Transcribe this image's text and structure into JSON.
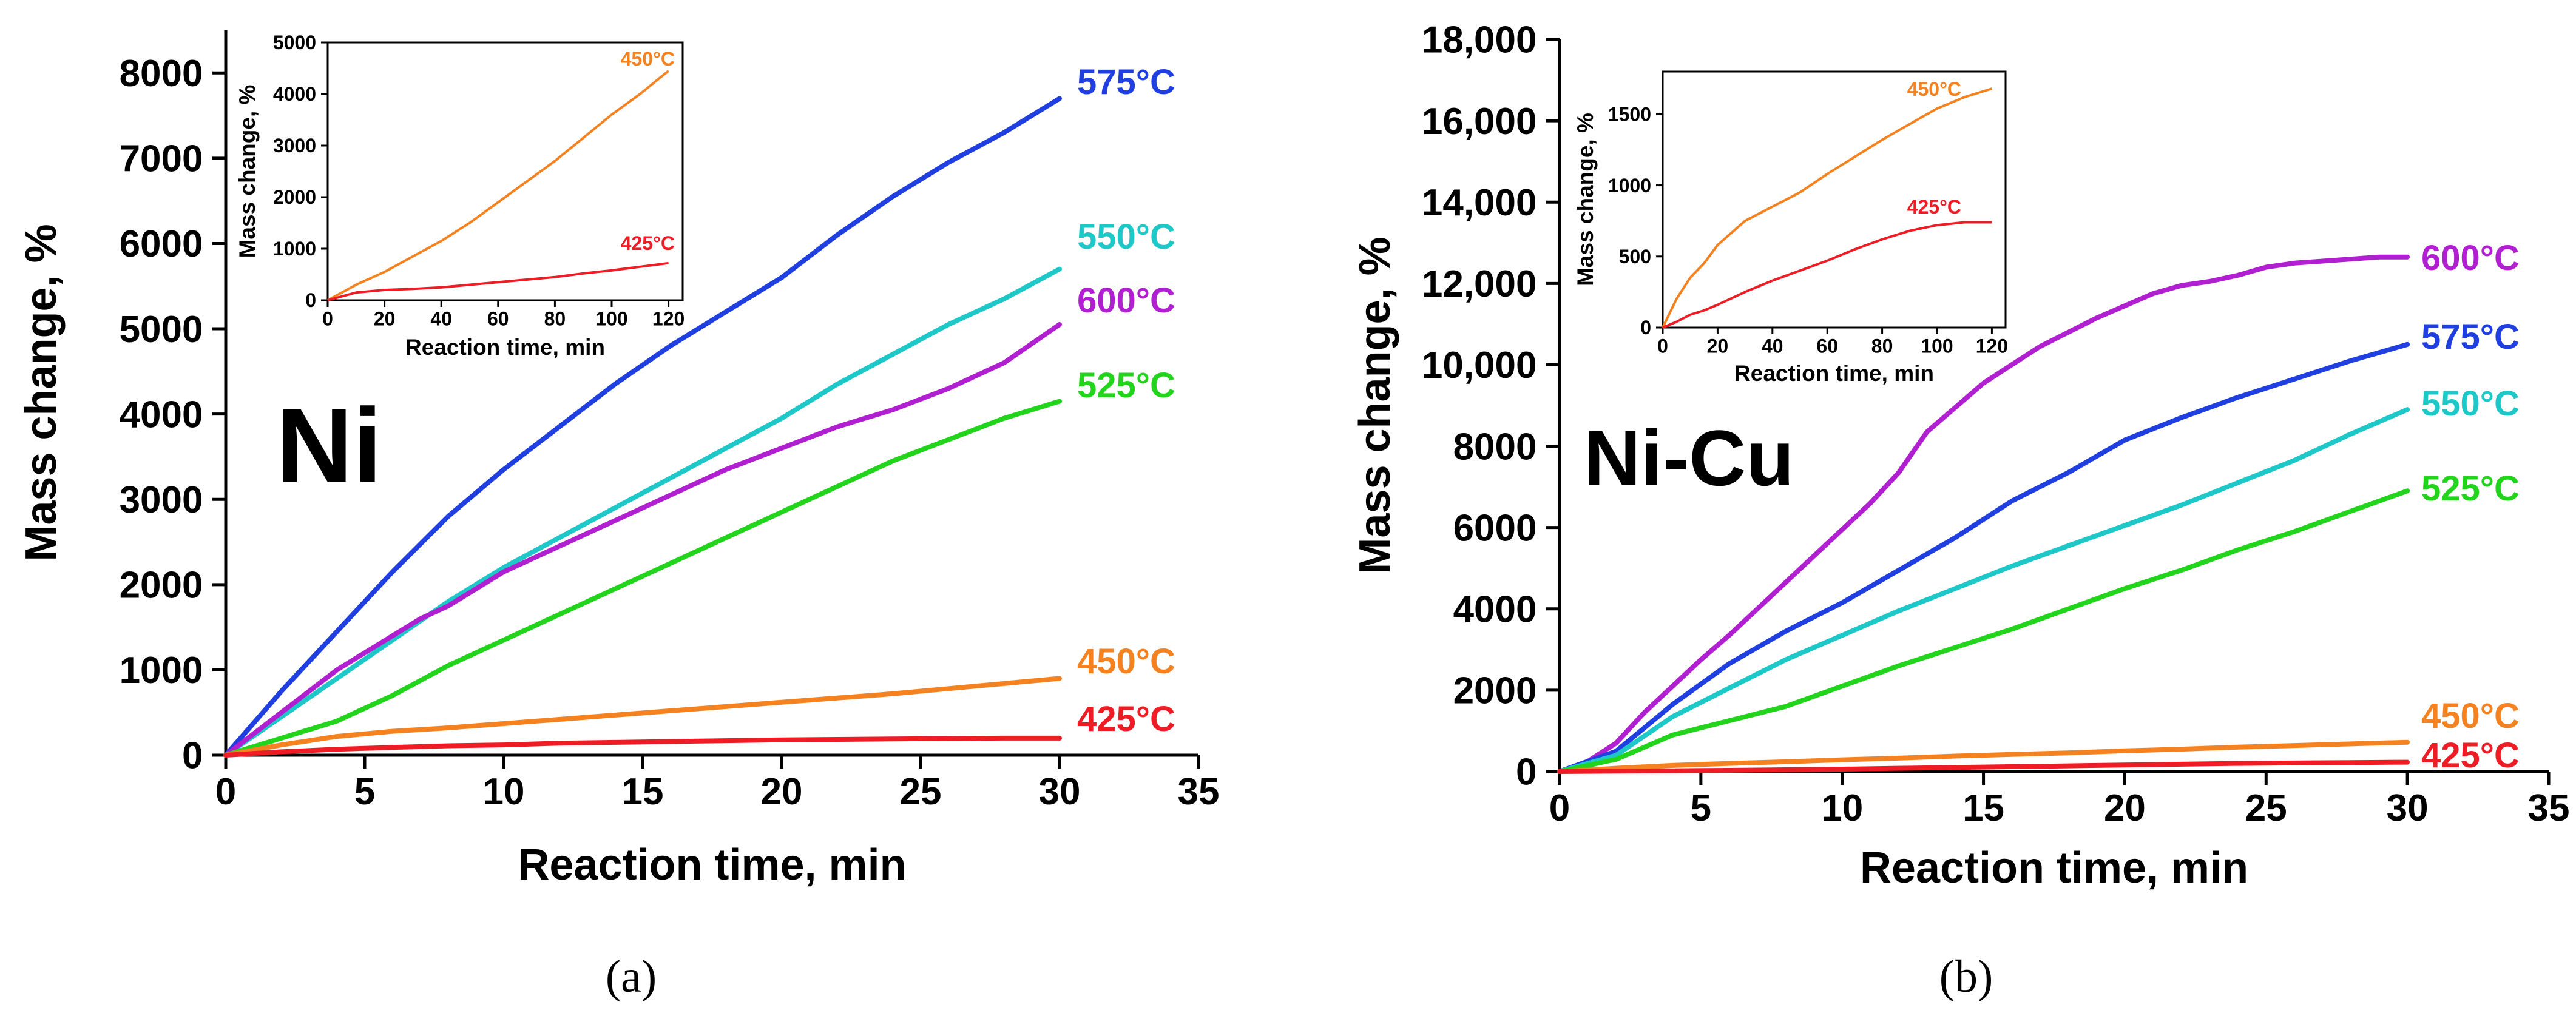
{
  "chart_data": [
    {
      "id": "a",
      "type": "line",
      "panel_label": "(a)",
      "material": "Ni",
      "xlabel": "Reaction time, min",
      "ylabel": "Mass change, %",
      "xlim": [
        0,
        35
      ],
      "ylim": [
        0,
        8500
      ],
      "xticks": [
        0,
        5,
        10,
        15,
        20,
        25,
        30,
        35
      ],
      "xtick_labels": [
        "0",
        "5",
        "10",
        "15",
        "20",
        "25",
        "30",
        "35"
      ],
      "yticks": [
        0,
        1000,
        2000,
        3000,
        4000,
        5000,
        6000,
        7000,
        8000
      ],
      "ytick_labels": [
        "0",
        "1000",
        "2000",
        "3000",
        "4000",
        "5000",
        "6000",
        "7000",
        "8000"
      ],
      "series": [
        {
          "name": "575°C",
          "label": "575°C",
          "color": "#1f3fe0",
          "x": [
            0,
            2,
            4,
            6,
            8,
            10,
            12,
            14,
            16,
            18,
            20,
            22,
            24,
            26,
            28,
            30
          ],
          "values": [
            0,
            750,
            1450,
            2150,
            2800,
            3350,
            3850,
            4350,
            4800,
            5200,
            5600,
            6100,
            6550,
            6950,
            7300,
            7700
          ]
        },
        {
          "name": "550°C",
          "label": "550°C",
          "color": "#1ec8c8",
          "x": [
            0,
            2,
            4,
            6,
            8,
            10,
            12,
            14,
            16,
            18,
            20,
            22,
            24,
            26,
            28,
            30
          ],
          "values": [
            0,
            450,
            900,
            1350,
            1800,
            2200,
            2550,
            2900,
            3250,
            3600,
            3950,
            4350,
            4700,
            5050,
            5350,
            5700
          ]
        },
        {
          "name": "600°C",
          "label": "600°C",
          "color": "#b01fd0",
          "x": [
            0,
            2,
            4,
            6,
            7,
            8,
            10,
            12,
            14,
            16,
            18,
            20,
            22,
            24,
            26,
            28,
            30
          ],
          "values": [
            0,
            500,
            1000,
            1400,
            1600,
            1750,
            2150,
            2450,
            2750,
            3050,
            3350,
            3600,
            3850,
            4050,
            4300,
            4600,
            5050
          ]
        },
        {
          "name": "525°C",
          "label": "525°C",
          "color": "#22d41c",
          "x": [
            0,
            2,
            4,
            6,
            8,
            10,
            12,
            14,
            16,
            18,
            20,
            22,
            24,
            26,
            28,
            30
          ],
          "values": [
            0,
            200,
            400,
            700,
            1050,
            1350,
            1650,
            1950,
            2250,
            2550,
            2850,
            3150,
            3450,
            3700,
            3950,
            4150
          ]
        },
        {
          "name": "450°C",
          "label": "450°C",
          "color": "#f58220",
          "x": [
            0,
            2,
            4,
            6,
            8,
            10,
            12,
            14,
            16,
            18,
            20,
            22,
            24,
            26,
            28,
            30
          ],
          "values": [
            0,
            120,
            220,
            280,
            320,
            370,
            420,
            470,
            520,
            570,
            620,
            670,
            720,
            780,
            840,
            900
          ]
        },
        {
          "name": "425°C",
          "label": "425°C",
          "color": "#ee1c25",
          "x": [
            0,
            2,
            4,
            6,
            8,
            10,
            12,
            14,
            16,
            18,
            20,
            22,
            24,
            26,
            28,
            30
          ],
          "values": [
            0,
            40,
            70,
            90,
            110,
            120,
            140,
            150,
            160,
            170,
            180,
            185,
            190,
            195,
            200,
            200
          ]
        }
      ],
      "inset": {
        "xlabel": "Reaction time, min",
        "ylabel": "Mass change, %",
        "xlim": [
          0,
          125
        ],
        "ylim": [
          0,
          5000
        ],
        "xticks": [
          0,
          20,
          40,
          60,
          80,
          100,
          120
        ],
        "xtick_labels": [
          "0",
          "20",
          "40",
          "60",
          "80",
          "100",
          "120"
        ],
        "yticks": [
          0,
          1000,
          2000,
          3000,
          4000,
          5000
        ],
        "ytick_labels": [
          "0",
          "1000",
          "2000",
          "3000",
          "4000",
          "5000"
        ],
        "series": [
          {
            "name": "450°C",
            "label": "450°C",
            "color": "#f58220",
            "x": [
              0,
              10,
              20,
              30,
              40,
              50,
              60,
              70,
              80,
              90,
              100,
              110,
              120
            ],
            "values": [
              0,
              300,
              550,
              850,
              1150,
              1500,
              1900,
              2300,
              2700,
              3150,
              3600,
              4000,
              4450
            ]
          },
          {
            "name": "425°C",
            "label": "425°C",
            "color": "#ee1c25",
            "x": [
              0,
              10,
              20,
              30,
              40,
              50,
              60,
              70,
              80,
              90,
              100,
              110,
              120
            ],
            "values": [
              0,
              150,
              200,
              220,
              250,
              300,
              350,
              400,
              450,
              520,
              580,
              650,
              720
            ]
          }
        ]
      }
    },
    {
      "id": "b",
      "type": "line",
      "panel_label": "(b)",
      "material": "Ni-Cu",
      "xlabel": "Reaction time, min",
      "ylabel": "Mass change, %",
      "xlim": [
        0,
        35
      ],
      "ylim": [
        0,
        18000
      ],
      "xticks": [
        0,
        5,
        10,
        15,
        20,
        25,
        30,
        35
      ],
      "xtick_labels": [
        "0",
        "5",
        "10",
        "15",
        "20",
        "25",
        "30",
        "35"
      ],
      "yticks": [
        0,
        2000,
        4000,
        6000,
        8000,
        10000,
        12000,
        14000,
        16000,
        18000
      ],
      "ytick_labels": [
        "0",
        "2000",
        "4000",
        "6000",
        "8000",
        "10,000",
        "12,000",
        "14,000",
        "16,000",
        "18,000"
      ],
      "series": [
        {
          "name": "600°C",
          "label": "600°C",
          "color": "#b01fd0",
          "x": [
            0,
            1,
            2,
            3,
            4,
            5,
            6,
            7,
            8,
            9,
            10,
            11,
            12,
            13,
            14,
            15,
            16,
            17,
            18,
            19,
            20,
            21,
            22,
            23,
            24,
            25,
            26,
            27,
            28,
            29,
            30
          ],
          "values": [
            0,
            250,
            700,
            1450,
            2100,
            2750,
            3350,
            4000,
            4650,
            5300,
            5950,
            6600,
            7350,
            8350,
            8950,
            9550,
            10000,
            10450,
            10800,
            11150,
            11450,
            11750,
            11950,
            12050,
            12200,
            12400,
            12500,
            12550,
            12600,
            12650,
            12650
          ]
        },
        {
          "name": "575°C",
          "label": "575°C",
          "color": "#1f3fe0",
          "x": [
            0,
            2,
            4,
            6,
            8,
            10,
            12,
            14,
            16,
            18,
            20,
            22,
            24,
            26,
            28,
            30
          ],
          "values": [
            0,
            500,
            1650,
            2650,
            3450,
            4150,
            4950,
            5750,
            6650,
            7350,
            8150,
            8700,
            9200,
            9650,
            10100,
            10500
          ]
        },
        {
          "name": "550°C",
          "label": "550°C",
          "color": "#1ec8c8",
          "x": [
            0,
            2,
            4,
            6,
            8,
            10,
            12,
            14,
            16,
            18,
            20,
            22,
            24,
            26,
            28,
            30
          ],
          "values": [
            0,
            400,
            1350,
            2050,
            2750,
            3350,
            3950,
            4500,
            5050,
            5550,
            6050,
            6550,
            7100,
            7650,
            8300,
            8900
          ]
        },
        {
          "name": "525°C",
          "label": "525°C",
          "color": "#22d41c",
          "x": [
            0,
            2,
            4,
            6,
            8,
            10,
            12,
            14,
            16,
            18,
            20,
            22,
            24,
            26,
            28,
            30
          ],
          "values": [
            0,
            300,
            900,
            1250,
            1600,
            2100,
            2600,
            3050,
            3500,
            4000,
            4500,
            4950,
            5450,
            5900,
            6400,
            6900
          ]
        },
        {
          "name": "450°C",
          "label": "450°C",
          "color": "#f58220",
          "x": [
            0,
            2,
            4,
            6,
            8,
            10,
            12,
            14,
            16,
            18,
            20,
            22,
            24,
            26,
            28,
            30
          ],
          "values": [
            0,
            80,
            150,
            200,
            240,
            290,
            330,
            380,
            420,
            460,
            510,
            550,
            600,
            640,
            680,
            720
          ]
        },
        {
          "name": "425°C",
          "label": "425°C",
          "color": "#ee1c25",
          "x": [
            0,
            2,
            4,
            6,
            8,
            10,
            12,
            14,
            16,
            18,
            20,
            22,
            24,
            26,
            28,
            30
          ],
          "values": [
            0,
            10,
            20,
            30,
            45,
            60,
            80,
            100,
            120,
            140,
            160,
            180,
            200,
            210,
            220,
            230
          ]
        }
      ],
      "inset": {
        "xlabel": "Reaction time, min",
        "ylabel": "Mass change, %",
        "xlim": [
          0,
          125
        ],
        "ylim": [
          0,
          1800
        ],
        "xticks": [
          0,
          20,
          40,
          60,
          80,
          100,
          120
        ],
        "xtick_labels": [
          "0",
          "20",
          "40",
          "60",
          "80",
          "100",
          "120"
        ],
        "yticks": [
          0,
          500,
          1000,
          1500
        ],
        "ytick_labels": [
          "0",
          "500",
          "1000",
          "1500"
        ],
        "series": [
          {
            "name": "450°C",
            "label": "450°C",
            "color": "#f58220",
            "x": [
              0,
              5,
              10,
              15,
              20,
              30,
              40,
              50,
              60,
              70,
              80,
              90,
              100,
              110,
              120
            ],
            "values": [
              0,
              200,
              350,
              450,
              580,
              750,
              850,
              950,
              1080,
              1200,
              1320,
              1430,
              1540,
              1620,
              1680
            ]
          },
          {
            "name": "425°C",
            "label": "425°C",
            "color": "#ee1c25",
            "x": [
              0,
              5,
              10,
              15,
              20,
              30,
              40,
              50,
              60,
              70,
              80,
              90,
              100,
              110,
              120
            ],
            "values": [
              0,
              40,
              90,
              120,
              160,
              250,
              330,
              400,
              470,
              550,
              620,
              680,
              720,
              740,
              740
            ]
          }
        ]
      }
    }
  ]
}
